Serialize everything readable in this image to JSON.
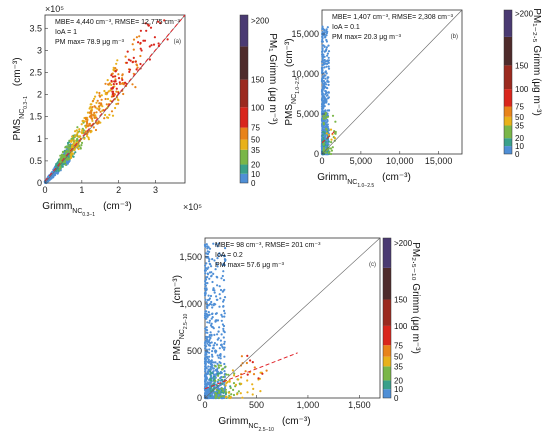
{
  "chart_data": [
    {
      "type": "scatter",
      "panel_label": "(a)",
      "annotations": [
        "MBE= 4,440 cm⁻³, RMSE= 12,775 cm⁻³",
        "IoA = 1",
        "PM max= 78.9 μg m⁻³"
      ],
      "xlim": [
        0,
        380000
      ],
      "ylim": [
        0,
        380000
      ],
      "x_ticks": [
        0,
        100000,
        200000,
        300000
      ],
      "x_tick_labels": [
        "0",
        "1",
        "2",
        "3"
      ],
      "y_ticks": [
        0,
        50000,
        100000,
        150000,
        200000,
        250000,
        300000,
        350000
      ],
      "y_tick_labels": [
        "0",
        "0.5",
        "1",
        "1.5",
        "2",
        "2.5",
        "3",
        "3.5"
      ],
      "x_multiplier": "×10⁵",
      "y_multiplier": "×10⁵",
      "xlabel_main": "Grimm",
      "xlabel_sub": "NC",
      "xlabel_subsub": "0.3−1",
      "xlabel_unit": "(cm⁻³)",
      "ylabel_main": "PMS",
      "ylabel_sub": "NC",
      "ylabel_subsub": "0.3−1",
      "ylabel_unit": "(cm⁻³)",
      "fit_line": [
        [
          0,
          4440
        ],
        [
          380000,
          410000
        ]
      ],
      "one_to_one": true,
      "colorbar": {
        "ticks": [
          "0",
          "10",
          "20",
          "35",
          "50",
          "75",
          "100",
          "150",
          ">200"
        ],
        "label": "PM₁ Grimm (μg m⁻³)"
      },
      "clusters": [
        {
          "color": "#4f8fd6",
          "count": 420,
          "x": [
            0,
            70000
          ],
          "y_ratio": [
            0.7,
            1.3
          ],
          "spread": 8000
        },
        {
          "color": "#3aa08a",
          "count": 90,
          "x": [
            30000,
            90000
          ],
          "y_ratio": [
            0.8,
            1.4
          ],
          "spread": 8000
        },
        {
          "color": "#7ab648",
          "count": 120,
          "x": [
            40000,
            110000
          ],
          "y_ratio": [
            0.8,
            1.4
          ],
          "spread": 10000
        },
        {
          "color": "#e8b11a",
          "count": 140,
          "x": [
            70000,
            200000
          ],
          "y_ratio": [
            0.85,
            1.45
          ],
          "spread": 15000
        },
        {
          "color": "#e8831a",
          "count": 110,
          "x": [
            110000,
            260000
          ],
          "y_ratio": [
            0.9,
            1.4
          ],
          "spread": 15000
        },
        {
          "color": "#d9261c",
          "count": 70,
          "x": [
            180000,
            350000
          ],
          "y_ratio": [
            0.95,
            1.35
          ],
          "spread": 15000
        }
      ]
    },
    {
      "type": "scatter",
      "panel_label": "(b)",
      "annotations": [
        "MBE= 1,407 cm⁻³, RMSE= 2,308 cm⁻³",
        "IoA = 0.1",
        "PM max= 20.3 μg m⁻³"
      ],
      "xlim": [
        0,
        18000
      ],
      "ylim": [
        0,
        18000
      ],
      "x_ticks": [
        0,
        5000,
        10000,
        15000
      ],
      "x_tick_labels": [
        "0",
        "5,000",
        "10,000",
        "15,000"
      ],
      "y_ticks": [
        0,
        5000,
        10000,
        15000
      ],
      "y_tick_labels": [
        "0",
        "5,000",
        "10,000",
        "15,000"
      ],
      "xlabel_main": "Grimm",
      "xlabel_sub": "NC",
      "xlabel_subsub": "1.0−2.5",
      "xlabel_unit": "(cm⁻³)",
      "ylabel_main": "PMS",
      "ylabel_sub": "NC",
      "ylabel_subsub": "1.0−2.5",
      "ylabel_unit": "(cm⁻³)",
      "fit_line": [
        [
          0,
          1400
        ],
        [
          1600,
          2800
        ]
      ],
      "one_to_one": true,
      "colorbar": {
        "ticks": [
          "0",
          "10",
          "20",
          "35",
          "50",
          "75",
          "100",
          "150",
          ">200"
        ],
        "label": "PM₁₋₂.₅ Grimm (μg m⁻³)"
      },
      "clusters": [
        {
          "color": "#4f8fd6",
          "count": 650,
          "x": [
            0,
            900
          ],
          "y_range": [
            0,
            16000
          ],
          "skew": 3
        },
        {
          "color": "#3aa08a",
          "count": 40,
          "x": [
            100,
            1000
          ],
          "y_range": [
            0,
            3000
          ],
          "skew": 1.5
        },
        {
          "color": "#7ab648",
          "count": 40,
          "x": [
            200,
            1800
          ],
          "y_range": [
            0,
            5500
          ],
          "skew": 1.5
        },
        {
          "color": "#e8b11a",
          "count": 6,
          "x": [
            600,
            1800
          ],
          "y_range": [
            1500,
            3500
          ],
          "skew": 1
        }
      ]
    },
    {
      "type": "scatter",
      "panel_label": "(c)",
      "annotations": [
        "MBE= 98 cm⁻³, RMSE= 201 cm⁻³",
        "IoA = 0.2",
        "PM max= 57.6 μg m⁻³"
      ],
      "xlim": [
        0,
        1700
      ],
      "ylim": [
        0,
        1700
      ],
      "x_ticks": [
        0,
        500,
        1000,
        1500
      ],
      "x_tick_labels": [
        "0",
        "500",
        "1,000",
        "1,500"
      ],
      "y_ticks": [
        0,
        500,
        1000,
        1500
      ],
      "y_tick_labels": [
        "0",
        "500",
        "1,000",
        "1,500"
      ],
      "xlabel_main": "Grimm",
      "xlabel_sub": "NC",
      "xlabel_subsub": "2.5−10",
      "xlabel_unit": "(cm⁻³)",
      "ylabel_main": "PMS",
      "ylabel_sub": "NC",
      "ylabel_subsub": "2.5−10",
      "ylabel_unit": "(cm⁻³)",
      "fit_line": [
        [
          0,
          98
        ],
        [
          900,
          480
        ]
      ],
      "one_to_one": true,
      "colorbar": {
        "ticks": [
          "0",
          "10",
          "20",
          "35",
          "50",
          "75",
          "100",
          "150",
          ">200"
        ],
        "label": "PM₂.₅₋₁₀ Grimm (μg m⁻³)"
      },
      "clusters": [
        {
          "color": "#4f8fd6",
          "count": 750,
          "x": [
            0,
            200
          ],
          "y_range": [
            0,
            1650
          ],
          "skew": 3
        },
        {
          "color": "#3aa08a",
          "count": 40,
          "x": [
            50,
            250
          ],
          "y_range": [
            0,
            300
          ],
          "skew": 1.5
        },
        {
          "color": "#7ab648",
          "count": 50,
          "x": [
            100,
            350
          ],
          "y_range": [
            0,
            350
          ],
          "skew": 1.5
        },
        {
          "color": "#e8b11a",
          "count": 30,
          "x": [
            200,
            600
          ],
          "y_range": [
            0,
            300
          ],
          "skew": 1.2
        },
        {
          "color": "#e8831a",
          "count": 10,
          "x": [
            350,
            600
          ],
          "y_range": [
            200,
            450
          ],
          "skew": 1
        },
        {
          "color": "#d9261c",
          "count": 6,
          "x": [
            400,
            800
          ],
          "y_range": [
            200,
            480
          ],
          "skew": 1
        }
      ]
    }
  ],
  "colorbar_colors": [
    "#4f8fd6",
    "#3aa08a",
    "#7ab648",
    "#e8b11a",
    "#e8831a",
    "#d9261c",
    "#9b2a1f",
    "#4e2b2b",
    "#4a3a72"
  ]
}
